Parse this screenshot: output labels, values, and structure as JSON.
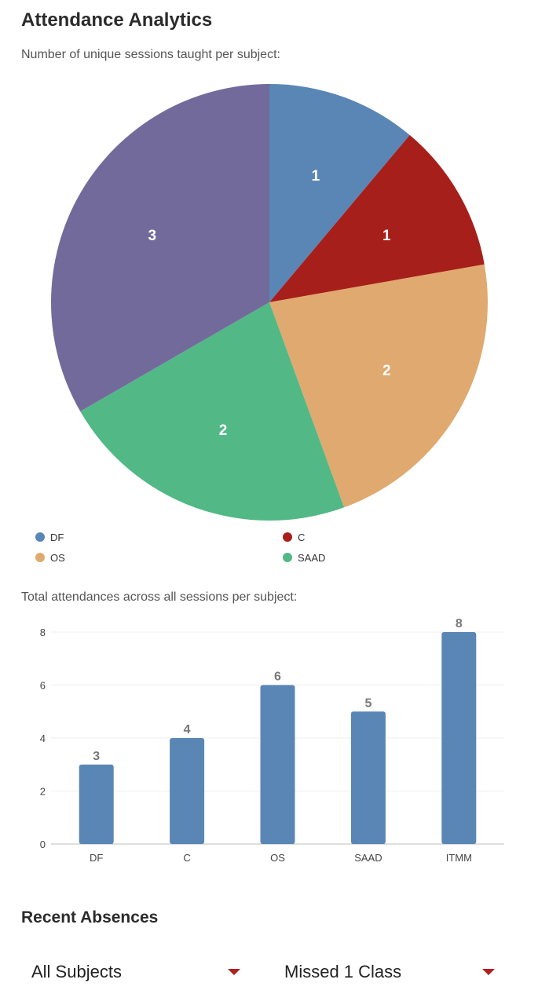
{
  "page": {
    "title": "Attendance Analytics",
    "pie_caption": "Number of unique sessions taught per subject:",
    "bar_caption": "Total attendances across all sessions per subject:",
    "recent_absences_title": "Recent Absences"
  },
  "filters": {
    "subject": "All Subjects",
    "missed": "Missed 1 Class"
  },
  "colors": {
    "DF": "#5a86b6",
    "C": "#a61f1a",
    "OS": "#e0a96f",
    "SAAD": "#52b886",
    "ITMM": "#736a9c",
    "bar": "#5a86b6",
    "accent": "#b02020"
  },
  "legend": [
    {
      "label": "DF",
      "color": "#5a86b6"
    },
    {
      "label": "C",
      "color": "#a61f1a"
    },
    {
      "label": "OS",
      "color": "#e0a96f"
    },
    {
      "label": "SAAD",
      "color": "#52b886"
    }
  ],
  "chart_data": [
    {
      "type": "pie",
      "categories": [
        "DF",
        "C",
        "OS",
        "SAAD",
        "ITMM"
      ],
      "values": [
        1,
        1,
        2,
        2,
        3
      ],
      "data_labels": [
        "1",
        "1",
        "2",
        "2",
        "3"
      ],
      "title": "Number of unique sessions taught per subject:",
      "legend": "bottom"
    },
    {
      "type": "bar",
      "categories": [
        "DF",
        "C",
        "OS",
        "SAAD",
        "ITMM"
      ],
      "values": [
        3,
        4,
        6,
        5,
        8
      ],
      "data_labels": [
        "3",
        "4",
        "6",
        "5",
        "8"
      ],
      "title": "Total attendances across all sessions per subject:",
      "xlabel": "",
      "ylabel": "",
      "ylim": [
        0,
        8
      ],
      "yticks": [
        "0",
        "2",
        "4",
        "6",
        "8"
      ],
      "grid": true
    }
  ]
}
